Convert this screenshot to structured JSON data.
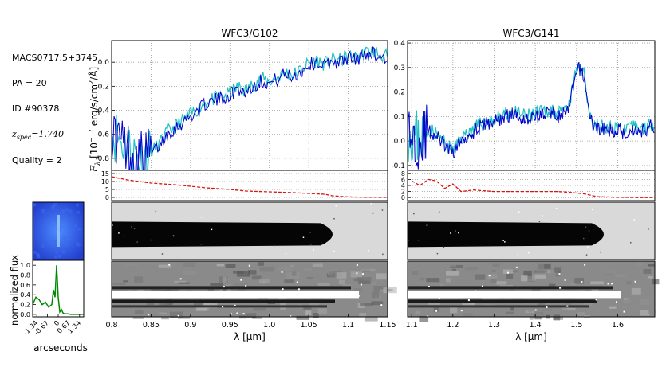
{
  "info": {
    "object": "MACS0717.5+3745",
    "pa": "PA = 20",
    "id": "ID #90378",
    "z_label": "z",
    "z_sub": "spec",
    "z_value": "=1.740",
    "quality": "Quality = 2"
  },
  "colors": {
    "spectrum_main": "#0000cc",
    "spectrum_error": "#20c0c0",
    "contamination": "#dd1111",
    "profile": "#008800",
    "thumbnail": "#2a5bd8"
  },
  "chart_data": [
    {
      "type": "line",
      "title": "WFC3/G102",
      "xlabel": "λ [μm]",
      "ylabel": "F_λ [10^-17 erg/s/cm^2/Å]",
      "xlim": [
        0.8,
        1.15
      ],
      "ylim": [
        -0.9,
        0.18
      ],
      "xticks": [
        0.8,
        0.85,
        0.9,
        0.95,
        1.0,
        1.05,
        1.1,
        1.15
      ],
      "xticklabels": [
        "0.8",
        "0.85",
        "0.9",
        "0.95",
        "1.0",
        "1.05",
        "1.1",
        "1.15"
      ],
      "yticks": [
        -0.8,
        -0.6,
        -0.4,
        -0.2,
        0.0
      ],
      "yticklabels": [
        "-0.8",
        "-0.6",
        "-0.4",
        "-0.2",
        "0.0"
      ],
      "grid": true,
      "series": [
        {
          "name": "flux",
          "x": [
            0.8,
            0.81,
            0.82,
            0.83,
            0.84,
            0.85,
            0.86,
            0.87,
            0.88,
            0.89,
            0.9,
            0.91,
            0.92,
            0.93,
            0.94,
            0.95,
            0.96,
            0.97,
            0.98,
            0.99,
            1.0,
            1.01,
            1.02,
            1.03,
            1.04,
            1.05,
            1.06,
            1.07,
            1.08,
            1.09,
            1.1,
            1.11,
            1.12,
            1.13,
            1.14,
            1.15
          ],
          "y": [
            -0.6,
            -0.65,
            -0.72,
            -0.78,
            -0.8,
            -0.76,
            -0.7,
            -0.6,
            -0.55,
            -0.5,
            -0.45,
            -0.4,
            -0.34,
            -0.32,
            -0.3,
            -0.27,
            -0.22,
            -0.25,
            -0.2,
            -0.15,
            -0.18,
            -0.14,
            -0.1,
            -0.12,
            -0.08,
            -0.02,
            0.0,
            -0.03,
            0.01,
            0.0,
            0.04,
            0.02,
            0.06,
            0.08,
            0.05,
            0.03
          ]
        }
      ]
    },
    {
      "type": "line",
      "title": "WFC3/G141",
      "xlabel": "λ [μm]",
      "xlim": [
        1.09,
        1.69
      ],
      "ylim": [
        -0.12,
        0.41
      ],
      "xticks": [
        1.1,
        1.2,
        1.3,
        1.4,
        1.5,
        1.6
      ],
      "xticklabels": [
        "1.1",
        "1.2",
        "1.3",
        "1.4",
        "1.5",
        "1.6"
      ],
      "yticks": [
        -0.1,
        0.0,
        0.1,
        0.2,
        0.3,
        0.4
      ],
      "yticklabels": [
        "-0.1",
        "0.0",
        "0.1",
        "0.2",
        "0.3",
        "0.4"
      ],
      "grid": true,
      "series": [
        {
          "name": "flux",
          "x": [
            1.1,
            1.12,
            1.14,
            1.16,
            1.18,
            1.2,
            1.22,
            1.24,
            1.26,
            1.28,
            1.3,
            1.32,
            1.34,
            1.36,
            1.38,
            1.4,
            1.42,
            1.44,
            1.46,
            1.48,
            1.49,
            1.5,
            1.51,
            1.52,
            1.53,
            1.54,
            1.56,
            1.58,
            1.6,
            1.62,
            1.64,
            1.66,
            1.68
          ],
          "y": [
            0.02,
            0.0,
            0.04,
            0.02,
            -0.02,
            -0.05,
            0.0,
            0.03,
            0.05,
            0.07,
            0.08,
            0.09,
            0.11,
            0.1,
            0.09,
            0.1,
            0.11,
            0.12,
            0.1,
            0.12,
            0.2,
            0.28,
            0.3,
            0.25,
            0.12,
            0.06,
            0.05,
            0.04,
            0.05,
            0.03,
            0.05,
            0.04,
            0.06
          ]
        }
      ]
    },
    {
      "type": "line",
      "name": "contamination-g102",
      "xlim": [
        0.8,
        1.15
      ],
      "ylim": [
        -2,
        17
      ],
      "yticks": [
        0,
        5,
        10,
        15
      ],
      "yticklabels": [
        "0",
        "5",
        "10",
        "15"
      ],
      "series": [
        {
          "name": "contam",
          "x": [
            0.8,
            0.82,
            0.85,
            0.88,
            0.9,
            0.92,
            0.95,
            0.97,
            1.0,
            1.03,
            1.05,
            1.07,
            1.08,
            1.1,
            1.12,
            1.15
          ],
          "y": [
            13,
            11,
            9,
            8,
            7,
            6,
            5,
            4,
            3.5,
            3,
            2.5,
            2,
            1,
            0.3,
            0.1,
            0
          ]
        }
      ]
    },
    {
      "type": "line",
      "name": "contamination-g141",
      "xlim": [
        1.09,
        1.69
      ],
      "ylim": [
        -1,
        9
      ],
      "yticks": [
        0,
        2,
        4,
        6,
        8
      ],
      "yticklabels": [
        "0",
        "2",
        "4",
        "6",
        "8"
      ],
      "series": [
        {
          "name": "contam",
          "x": [
            1.1,
            1.12,
            1.14,
            1.16,
            1.18,
            1.2,
            1.22,
            1.25,
            1.3,
            1.35,
            1.4,
            1.45,
            1.48,
            1.5,
            1.52,
            1.55,
            1.6,
            1.65,
            1.69
          ],
          "y": [
            5.5,
            4,
            6,
            5.5,
            3,
            4.5,
            2,
            2.5,
            2,
            2,
            2,
            2,
            1.8,
            1.5,
            1.2,
            0.3,
            0.1,
            0,
            0
          ]
        }
      ]
    },
    {
      "type": "line",
      "title": "spatial-profile",
      "xlabel": "arcseconds",
      "ylabel": "normalized flux",
      "xlim": [
        -1.6,
        1.6
      ],
      "ylim": [
        -0.05,
        1.1
      ],
      "xticks": [
        -1.34,
        -0.67,
        0.0,
        0.67,
        1.34
      ],
      "xticklabels": [
        "-1.34",
        "-0.67",
        "0",
        "0.67",
        "1.34"
      ],
      "yticks": [
        0.0,
        0.2,
        0.4,
        0.6,
        0.8,
        1.0
      ],
      "yticklabels": [
        "0.0",
        "0.2",
        "0.4",
        "0.6",
        "0.8",
        "1.0"
      ],
      "series": [
        {
          "name": "profile",
          "x": [
            -1.6,
            -1.4,
            -1.2,
            -1.0,
            -0.8,
            -0.6,
            -0.4,
            -0.3,
            -0.2,
            -0.1,
            0.0,
            0.1,
            0.2,
            0.3,
            0.4,
            0.6,
            0.8,
            1.0,
            1.2,
            1.4,
            1.6
          ],
          "y": [
            0.2,
            0.35,
            0.3,
            0.2,
            0.25,
            0.15,
            0.2,
            0.5,
            0.35,
            1.0,
            0.35,
            0.05,
            0.1,
            0.03,
            0.01,
            0.01,
            0.0,
            0.0,
            0.0,
            0.0,
            0.0
          ]
        }
      ]
    }
  ]
}
